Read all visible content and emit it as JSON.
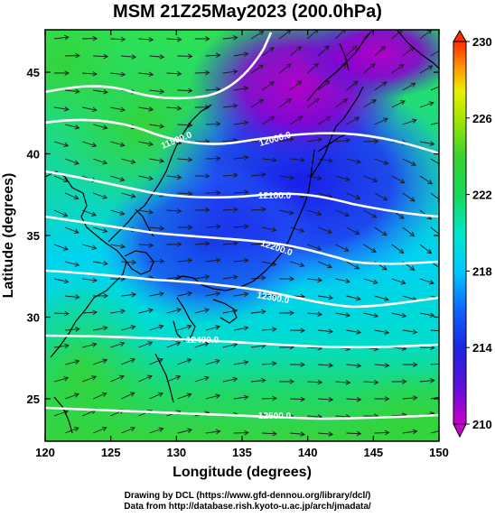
{
  "title": "MSM 21Z25May2023 (200.0hPa)",
  "map": {
    "xlabel": "Longitude (degrees)",
    "ylabel": "Latitude  (degrees)",
    "xlim": [
      120,
      150
    ],
    "ylim": [
      22.4,
      47.6
    ],
    "x_ticks": [
      "120",
      "125",
      "130",
      "135",
      "140",
      "145",
      "150"
    ],
    "y_ticks": [
      "25",
      "30",
      "35",
      "40",
      "45"
    ],
    "shaded_quantity_range": [
      210,
      230
    ],
    "colorbar_ticks": [
      "230",
      "226",
      "222",
      "218",
      "214",
      "210"
    ],
    "contours": [
      {
        "label": "11900.0"
      },
      {
        "label": "12000.0"
      },
      {
        "label": "12100.0"
      },
      {
        "label": "12200.0"
      },
      {
        "label": "12300.0"
      },
      {
        "label": "12400.0"
      },
      {
        "label": "12500.0"
      }
    ],
    "colors": {
      "magenta": "#cc00cc",
      "blue": "#1b25e0",
      "cyan": "#00e0ff",
      "green": "#1ed94a",
      "yellow": "#d8f000",
      "red": "#ff2a00"
    }
  },
  "credits": {
    "line1": "Drawing by DCL (https://www.gfd-dennou.org/library/dcl/)",
    "line2": "Data from http://database.rish.kyoto-u.ac.jp/arch/jmadata/"
  }
}
